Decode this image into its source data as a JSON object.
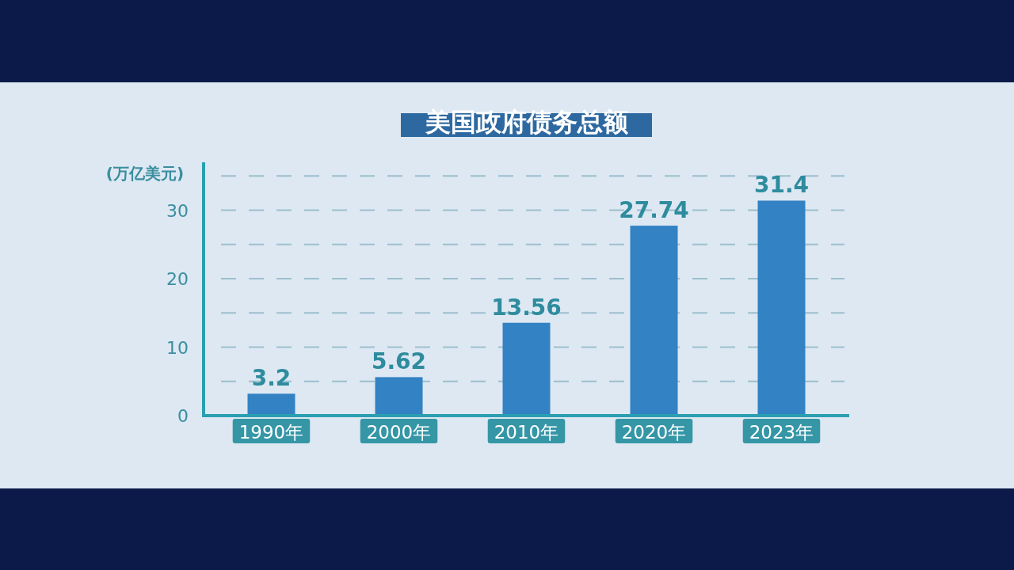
{
  "chart_data": {
    "type": "bar",
    "title": "美国政府债务总额",
    "ylabel": "(万亿美元)",
    "categories": [
      "1990年",
      "2000年",
      "2010年",
      "2020年",
      "2023年"
    ],
    "values": [
      3.2,
      5.62,
      13.56,
      27.74,
      31.4
    ],
    "color": "#3282c4",
    "ylim": [
      0,
      37
    ],
    "yticks": [
      0,
      {
        "value": 5,
        "label": null
      },
      10,
      {
        "value": 15,
        "label": null
      },
      20,
      {
        "value": 25,
        "label": null
      },
      30,
      {
        "value": 35,
        "label": null
      }
    ],
    "grid": "y",
    "data_labels": true
  }
}
